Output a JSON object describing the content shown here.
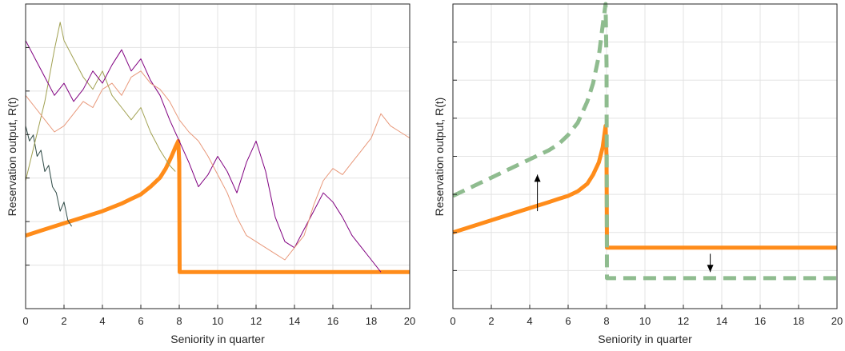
{
  "chart_data": [
    {
      "type": "line",
      "xlabel": "Seniority in quarter",
      "ylabel": "Reservation output, R(t)",
      "xlim": [
        0,
        20
      ],
      "ylim": [
        0,
        1
      ],
      "x_ticks": [
        "0",
        "2",
        "4",
        "6",
        "8",
        "10",
        "12",
        "14",
        "16",
        "18",
        "20"
      ],
      "grid": true,
      "colors": {
        "reservation": "#ff8c1a",
        "walks": [
          "#2e4a46",
          "#a0a050",
          "#800080",
          "#e8987a"
        ]
      },
      "series": [
        {
          "role": "reservation-output",
          "x": [
            0,
            1,
            2,
            3,
            4,
            5,
            5.5,
            6,
            6.5,
            7,
            7.3,
            7.6,
            7.8,
            7.95,
            8.0,
            8.02,
            20
          ],
          "y": [
            0.24,
            0.26,
            0.28,
            0.3,
            0.32,
            0.345,
            0.36,
            0.375,
            0.4,
            0.43,
            0.46,
            0.5,
            0.53,
            0.55,
            0.48,
            0.12,
            0.12
          ]
        },
        {
          "role": "output-path-1",
          "x": [
            0,
            0.2,
            0.4,
            0.6,
            0.8,
            1.0,
            1.2,
            1.4,
            1.6,
            1.8,
            2.0,
            2.2,
            2.4
          ],
          "y": [
            0.6,
            0.55,
            0.57,
            0.5,
            0.52,
            0.45,
            0.47,
            0.4,
            0.38,
            0.32,
            0.35,
            0.29,
            0.27
          ]
        },
        {
          "role": "output-path-2",
          "x": [
            0,
            0.5,
            1.0,
            1.5,
            1.8,
            2.0,
            2.5,
            3.0,
            3.5,
            4.0,
            4.5,
            5.0,
            5.5,
            6.0,
            6.5,
            7.0,
            7.5,
            7.8
          ],
          "y": [
            0.42,
            0.55,
            0.68,
            0.85,
            0.94,
            0.88,
            0.82,
            0.76,
            0.72,
            0.78,
            0.7,
            0.66,
            0.62,
            0.66,
            0.58,
            0.52,
            0.47,
            0.45
          ]
        },
        {
          "role": "output-path-3",
          "x": [
            0,
            0.5,
            1.0,
            1.5,
            2.0,
            2.5,
            3.0,
            3.5,
            4.0,
            4.5,
            5.0,
            5.5,
            6.0,
            6.5,
            7.0,
            7.5,
            8.0,
            8.5,
            9.0,
            9.5,
            10.0,
            10.5,
            11.0,
            11.5,
            12.0,
            12.5,
            13.0,
            13.5,
            14.0,
            14.5,
            15.0,
            15.5,
            16.0,
            16.5,
            17.0,
            17.5,
            18.0,
            18.5
          ],
          "y": [
            0.88,
            0.82,
            0.76,
            0.7,
            0.74,
            0.68,
            0.72,
            0.78,
            0.74,
            0.8,
            0.85,
            0.78,
            0.82,
            0.75,
            0.7,
            0.62,
            0.55,
            0.48,
            0.4,
            0.44,
            0.5,
            0.45,
            0.38,
            0.48,
            0.55,
            0.45,
            0.3,
            0.22,
            0.2,
            0.26,
            0.32,
            0.38,
            0.35,
            0.3,
            0.24,
            0.2,
            0.16,
            0.12
          ]
        },
        {
          "role": "output-path-4",
          "x": [
            0,
            0.5,
            1.0,
            1.5,
            2.0,
            2.5,
            3.0,
            3.5,
            4.0,
            4.5,
            5.0,
            5.5,
            6.0,
            6.5,
            7.0,
            7.5,
            8.0,
            8.5,
            9.0,
            9.5,
            10.0,
            10.5,
            11.0,
            11.5,
            12.0,
            12.5,
            13.0,
            13.5,
            14.0,
            14.5,
            15.0,
            15.5,
            16.0,
            16.5,
            17.0,
            17.5,
            18.0,
            18.5,
            19.0,
            19.5,
            20.0
          ],
          "y": [
            0.7,
            0.66,
            0.62,
            0.58,
            0.6,
            0.64,
            0.68,
            0.66,
            0.72,
            0.74,
            0.7,
            0.76,
            0.78,
            0.74,
            0.72,
            0.68,
            0.62,
            0.58,
            0.55,
            0.5,
            0.44,
            0.38,
            0.3,
            0.24,
            0.22,
            0.2,
            0.18,
            0.16,
            0.2,
            0.24,
            0.34,
            0.42,
            0.46,
            0.44,
            0.48,
            0.52,
            0.56,
            0.64,
            0.6,
            0.58,
            0.56
          ]
        }
      ]
    },
    {
      "type": "line",
      "xlabel": "Seniority in quarter",
      "ylabel": "Reservation output, R(t)",
      "xlim": [
        0,
        20
      ],
      "ylim": [
        0,
        1
      ],
      "x_ticks": [
        "0",
        "2",
        "4",
        "6",
        "8",
        "10",
        "12",
        "14",
        "16",
        "18",
        "20"
      ],
      "grid": true,
      "colors": {
        "reservation": "#ff8c1a",
        "shifted": "#8fbc8f"
      },
      "series": [
        {
          "role": "reservation-output",
          "x": [
            0,
            1,
            2,
            3,
            4,
            5,
            5.5,
            6,
            6.5,
            7,
            7.3,
            7.6,
            7.8,
            7.95,
            8.0,
            8.02,
            20
          ],
          "y": [
            0.25,
            0.27,
            0.29,
            0.31,
            0.33,
            0.35,
            0.36,
            0.37,
            0.385,
            0.41,
            0.44,
            0.48,
            0.53,
            0.6,
            0.5,
            0.2,
            0.2
          ]
        },
        {
          "role": "shifted-reservation-output",
          "dashed": true,
          "x": [
            0,
            1,
            2,
            3,
            4,
            5,
            5.5,
            6,
            6.5,
            7,
            7.3,
            7.6,
            7.8,
            7.95,
            8.0,
            8.02,
            20
          ],
          "y": [
            0.37,
            0.4,
            0.43,
            0.46,
            0.49,
            0.52,
            0.54,
            0.57,
            0.61,
            0.68,
            0.74,
            0.83,
            0.93,
            1.0,
            0.8,
            0.1,
            0.1
          ]
        }
      ],
      "annotations": [
        {
          "type": "arrow",
          "direction": "up",
          "x": 4.4,
          "y_from": 0.32,
          "y_to": 0.44
        },
        {
          "type": "arrow",
          "direction": "down",
          "x": 13.4,
          "y_from": 0.18,
          "y_to": 0.12
        }
      ]
    }
  ]
}
